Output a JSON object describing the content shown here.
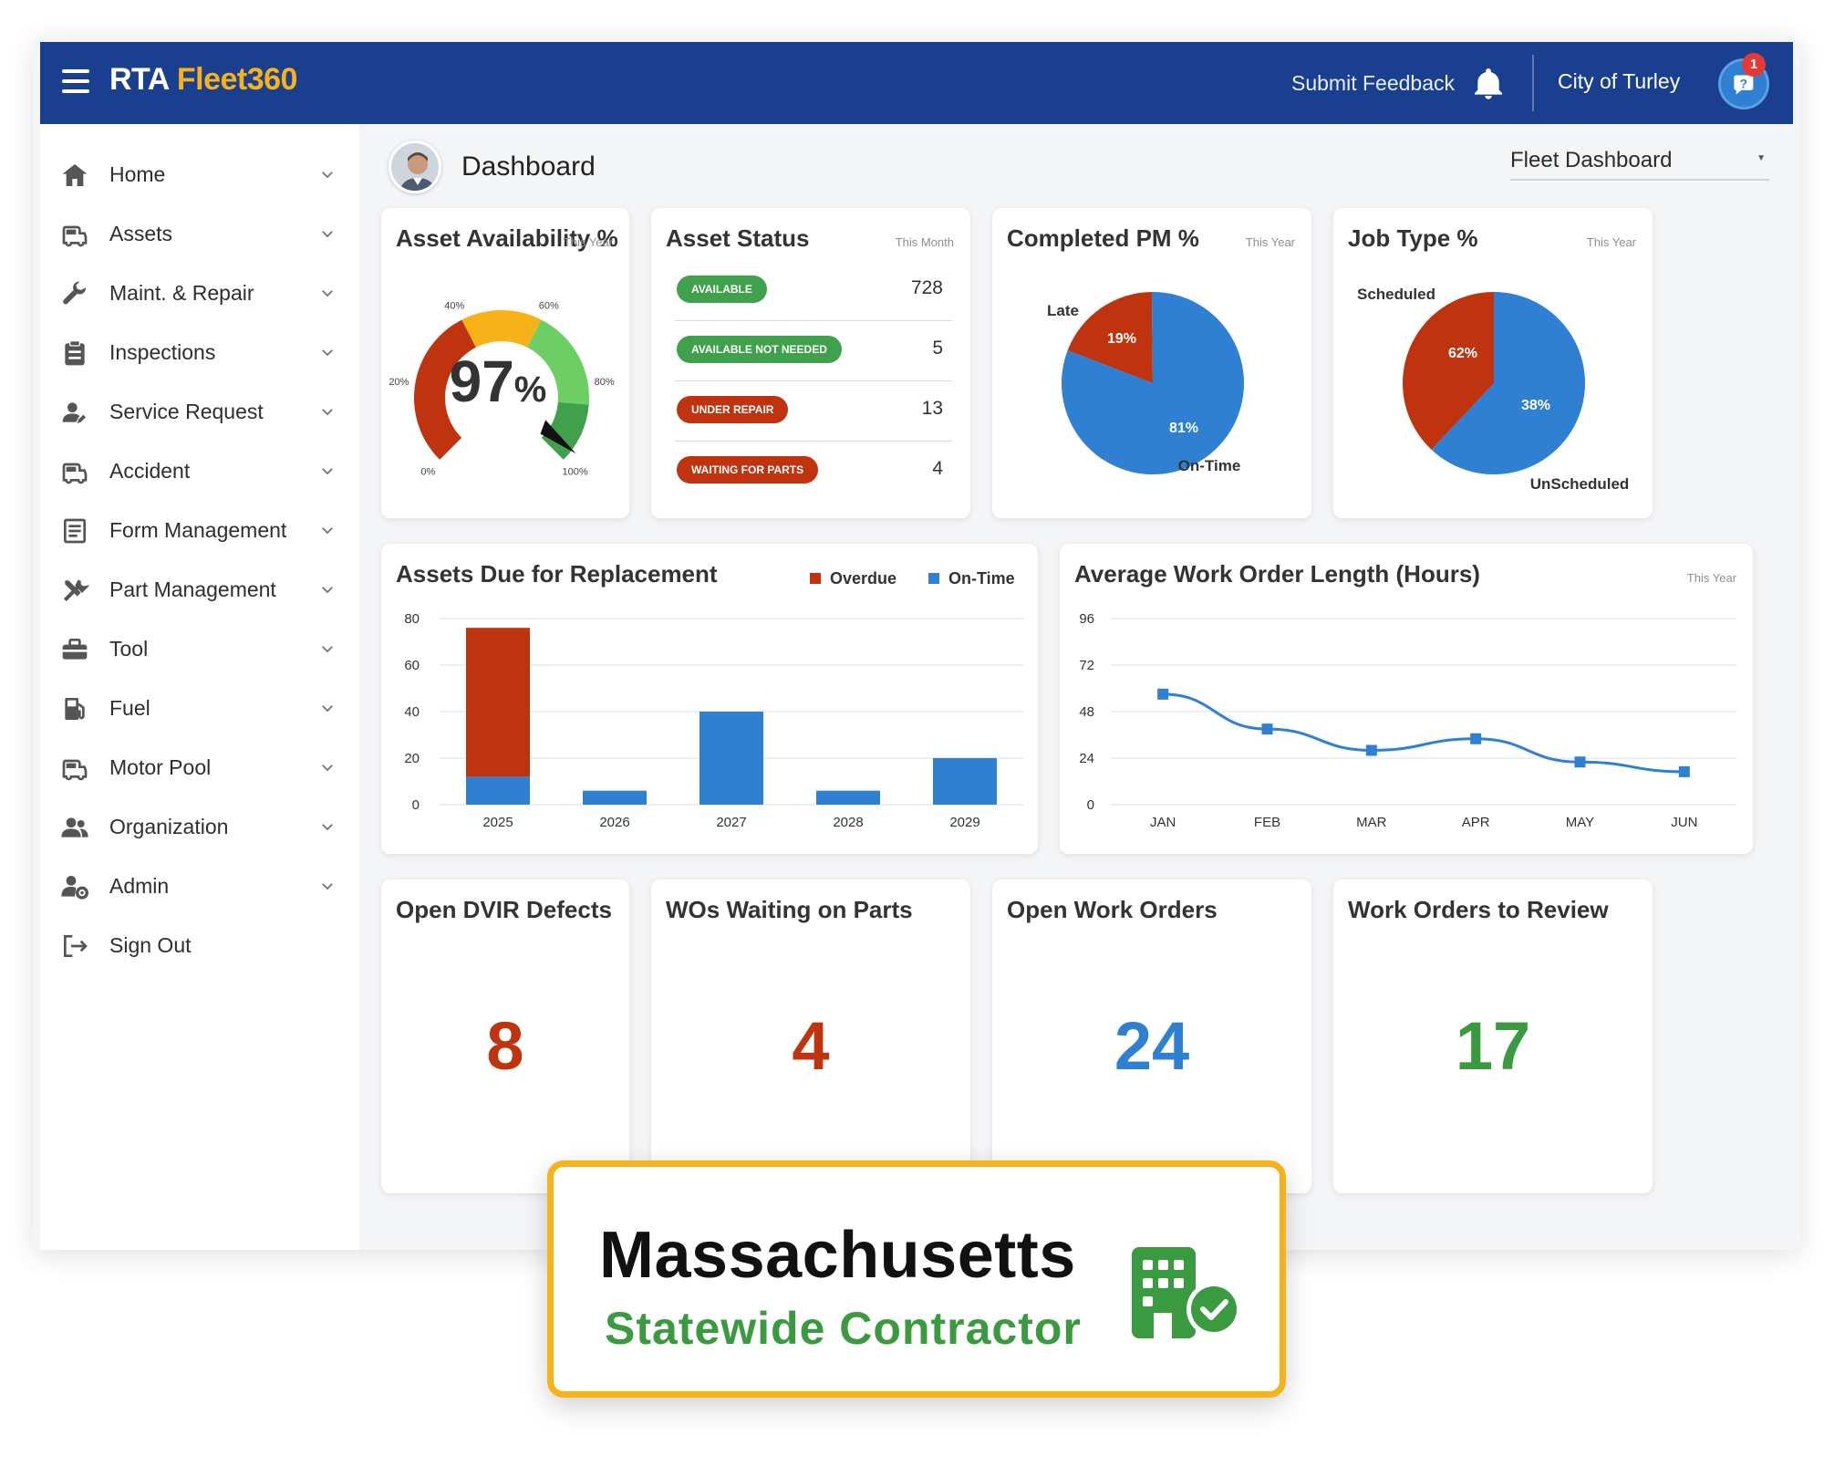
{
  "app": {
    "logo_part1": "RTA",
    "logo_part2": "Fleet360",
    "submit_feedback": "Submit Feedback",
    "organization": "City of Turley",
    "notification_count": "1",
    "brand_color": "#1b3f8f",
    "accent_color": "#f7b21a"
  },
  "sidebar": {
    "items": [
      {
        "label": "Home",
        "icon": "home-icon"
      },
      {
        "label": "Assets",
        "icon": "car-icon"
      },
      {
        "label": "Maint. & Repair",
        "icon": "wrench-icon"
      },
      {
        "label": "Inspections",
        "icon": "clipboard-icon"
      },
      {
        "label": "Service Request",
        "icon": "user-request-icon"
      },
      {
        "label": "Accident",
        "icon": "car-icon"
      },
      {
        "label": "Form Management",
        "icon": "form-icon"
      },
      {
        "label": "Part Management",
        "icon": "tools-icon"
      },
      {
        "label": "Tool",
        "icon": "toolbox-icon"
      },
      {
        "label": "Fuel",
        "icon": "fuel-icon"
      },
      {
        "label": "Motor Pool",
        "icon": "car-icon"
      },
      {
        "label": "Organization",
        "icon": "people-icon"
      },
      {
        "label": "Admin",
        "icon": "admin-gear-icon"
      },
      {
        "label": "Sign Out",
        "icon": "sign-out-icon"
      }
    ]
  },
  "header": {
    "page_title": "Dashboard",
    "dashboard_select": "Fleet Dashboard"
  },
  "asset_availability": {
    "title": "Asset Availability %",
    "period": "This Year",
    "value": "97",
    "unit": "%",
    "percent": 97,
    "ticks": [
      "0%",
      "20%",
      "40%",
      "60%",
      "80%",
      "100%"
    ]
  },
  "asset_status": {
    "title": "Asset Status",
    "period": "This Month",
    "rows": [
      {
        "label": "AVAILABLE",
        "value": "728",
        "color": "green"
      },
      {
        "label": "AVAILABLE NOT NEEDED",
        "value": "5",
        "color": "green"
      },
      {
        "label": "UNDER REPAIR",
        "value": "13",
        "color": "red"
      },
      {
        "label": "WAITING FOR PARTS",
        "value": "4",
        "color": "red"
      }
    ]
  },
  "completed_pm": {
    "title": "Completed PM %",
    "period": "This Year",
    "chart_data": {
      "type": "pie",
      "categories": [
        "Late",
        "On-Time"
      ],
      "values": [
        19,
        81
      ],
      "labels": [
        "19%",
        "81%"
      ],
      "colors": [
        "#c0330f",
        "#2f7fd3"
      ]
    }
  },
  "job_type": {
    "title": "Job Type %",
    "period": "This Year",
    "chart_data": {
      "type": "pie",
      "categories": [
        "Scheduled",
        "UnScheduled"
      ],
      "values": [
        62,
        38
      ],
      "labels": [
        "62%",
        "38%"
      ],
      "colors": [
        "#2f7fd3",
        "#c0330f"
      ]
    }
  },
  "replacement": {
    "title": "Assets Due for Replacement",
    "chart_data": {
      "type": "bar",
      "categories": [
        "2025",
        "2026",
        "2027",
        "2028",
        "2029"
      ],
      "series": [
        {
          "name": "On-Time",
          "values": [
            12,
            6,
            40,
            6,
            20
          ],
          "color": "#2f7fd3"
        },
        {
          "name": "Overdue",
          "values": [
            64,
            0,
            0,
            0,
            0
          ],
          "color": "#c0330f"
        }
      ],
      "stacked": true,
      "ylim": [
        0,
        80
      ],
      "yticks": [
        "0",
        "20",
        "40",
        "60",
        "80"
      ]
    }
  },
  "work_order_length": {
    "title": "Average Work Order Length (Hours)",
    "period": "This Year",
    "chart_data": {
      "type": "line",
      "categories": [
        "JAN",
        "FEB",
        "MAR",
        "APR",
        "MAY",
        "JUN"
      ],
      "values": [
        57,
        39,
        28,
        34,
        22,
        17
      ],
      "ylim": [
        0,
        96
      ],
      "yticks": [
        "0",
        "24",
        "48",
        "72",
        "96"
      ],
      "color": "#2f7fd3"
    }
  },
  "kpis": [
    {
      "title": "Open DVIR Defects",
      "value": "8",
      "color": "#c0330f"
    },
    {
      "title": "WOs Waiting on Parts",
      "value": "4",
      "color": "#c0330f"
    },
    {
      "title": "Open Work Orders",
      "value": "24",
      "color": "#2f7fd3"
    },
    {
      "title": "Work Orders to Review",
      "value": "17",
      "color": "#3a9a3f"
    }
  ],
  "callout": {
    "line1": "Massachusetts",
    "line2": "Statewide Contractor"
  }
}
